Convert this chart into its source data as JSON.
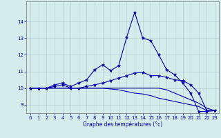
{
  "xlabel": "Graphe des températures (°c)",
  "background_color": "#d4ecec",
  "line_color": "#0000aa",
  "hours": [
    0,
    1,
    2,
    3,
    4,
    5,
    6,
    7,
    8,
    9,
    10,
    11,
    12,
    13,
    14,
    15,
    16,
    17,
    18,
    19,
    20,
    21,
    22,
    23
  ],
  "curve1": [
    10.0,
    10.0,
    10.0,
    10.2,
    10.3,
    10.1,
    10.3,
    10.5,
    11.1,
    11.4,
    11.05,
    11.35,
    13.05,
    14.55,
    13.0,
    12.85,
    12.0,
    11.1,
    10.8,
    10.3,
    9.7,
    8.6,
    8.6,
    8.65
  ],
  "curve2": [
    10.0,
    10.0,
    10.0,
    10.1,
    10.2,
    10.0,
    10.0,
    10.1,
    10.2,
    10.3,
    10.45,
    10.6,
    10.75,
    10.9,
    10.95,
    10.75,
    10.75,
    10.65,
    10.5,
    10.45,
    10.2,
    9.7,
    8.65,
    8.65
  ],
  "curve3": [
    10.0,
    10.0,
    10.0,
    10.0,
    10.0,
    10.0,
    10.0,
    10.0,
    10.0,
    10.0,
    10.0,
    10.0,
    10.0,
    10.0,
    10.0,
    10.0,
    10.0,
    9.9,
    9.7,
    9.5,
    9.3,
    9.1,
    8.8,
    8.65
  ],
  "curve4": [
    10.0,
    10.0,
    10.0,
    10.0,
    10.0,
    10.0,
    10.0,
    10.0,
    10.0,
    10.0,
    9.95,
    9.9,
    9.8,
    9.7,
    9.65,
    9.55,
    9.4,
    9.3,
    9.2,
    9.1,
    9.0,
    8.9,
    8.65,
    8.65
  ],
  "ylim": [
    8.5,
    15.2
  ],
  "yticks": [
    9,
    10,
    11,
    12,
    13,
    14
  ],
  "xlim": [
    -0.5,
    23.5
  ],
  "xticks": [
    0,
    1,
    2,
    3,
    4,
    5,
    6,
    7,
    8,
    9,
    10,
    11,
    12,
    13,
    14,
    15,
    16,
    17,
    18,
    19,
    20,
    21,
    22,
    23
  ]
}
